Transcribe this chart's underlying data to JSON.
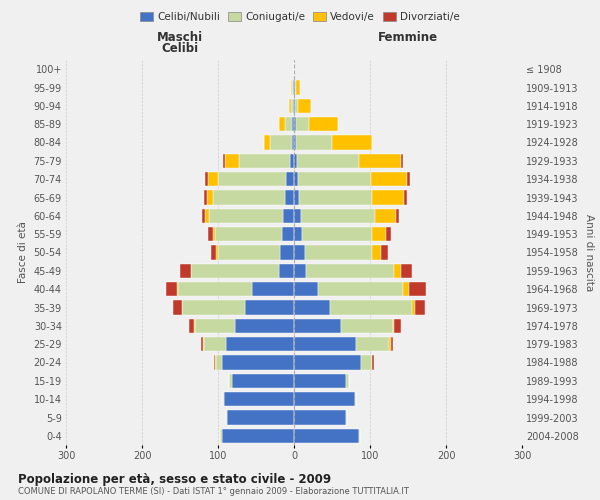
{
  "age_groups_bottom_to_top": [
    "0-4",
    "5-9",
    "10-14",
    "15-19",
    "20-24",
    "25-29",
    "30-34",
    "35-39",
    "40-44",
    "45-49",
    "50-54",
    "55-59",
    "60-64",
    "65-69",
    "70-74",
    "75-79",
    "80-84",
    "85-89",
    "90-94",
    "95-99",
    "100+"
  ],
  "birth_years_bottom_to_top": [
    "2004-2008",
    "1999-2003",
    "1994-1998",
    "1989-1993",
    "1984-1988",
    "1979-1983",
    "1974-1978",
    "1969-1973",
    "1964-1968",
    "1959-1963",
    "1954-1958",
    "1949-1953",
    "1944-1948",
    "1939-1943",
    "1934-1938",
    "1929-1933",
    "1924-1928",
    "1919-1923",
    "1914-1918",
    "1909-1913",
    "≤ 1908"
  ],
  "maschi_celibi": [
    95,
    88,
    92,
    82,
    95,
    90,
    78,
    65,
    55,
    20,
    18,
    16,
    14,
    12,
    10,
    5,
    3,
    2,
    1,
    1,
    0
  ],
  "maschi_coniugati": [
    2,
    2,
    2,
    3,
    8,
    28,
    52,
    82,
    98,
    115,
    82,
    88,
    98,
    95,
    90,
    68,
    28,
    10,
    3,
    2,
    0
  ],
  "maschi_vedovi": [
    0,
    0,
    0,
    0,
    1,
    2,
    1,
    1,
    1,
    1,
    2,
    2,
    5,
    8,
    13,
    18,
    8,
    8,
    3,
    1,
    0
  ],
  "maschi_divorziati": [
    0,
    0,
    0,
    0,
    1,
    3,
    7,
    11,
    14,
    14,
    7,
    7,
    4,
    4,
    4,
    2,
    1,
    0,
    0,
    0,
    0
  ],
  "femmine_nubili": [
    85,
    68,
    80,
    68,
    88,
    82,
    62,
    48,
    32,
    16,
    15,
    11,
    9,
    7,
    5,
    4,
    2,
    2,
    1,
    1,
    0
  ],
  "femmine_coniugate": [
    2,
    2,
    2,
    4,
    14,
    43,
    68,
    107,
    112,
    116,
    87,
    92,
    97,
    96,
    96,
    82,
    48,
    18,
    4,
    2,
    0
  ],
  "femmine_vedove": [
    0,
    0,
    0,
    0,
    1,
    2,
    2,
    4,
    7,
    9,
    13,
    18,
    28,
    42,
    48,
    55,
    52,
    38,
    18,
    5,
    0
  ],
  "femmine_divorziate": [
    0,
    0,
    0,
    0,
    2,
    3,
    9,
    14,
    23,
    14,
    9,
    7,
    4,
    4,
    4,
    2,
    1,
    0,
    0,
    0,
    0
  ],
  "colors": {
    "celibi": "#4472c4",
    "coniugati": "#c5d9a0",
    "vedovi": "#ffc000",
    "divorziati": "#c0392b"
  },
  "title": "Popolazione per età, sesso e stato civile - 2009",
  "subtitle": "COMUNE DI RAPOLANO TERME (SI) - Dati ISTAT 1° gennaio 2009 - Elaborazione TUTTITALIA.IT",
  "legend_labels": [
    "Celibi/Nubili",
    "Coniugati/e",
    "Vedovi/e",
    "Divorziati/e"
  ],
  "background_color": "#f0f0f0",
  "xlim": 300
}
